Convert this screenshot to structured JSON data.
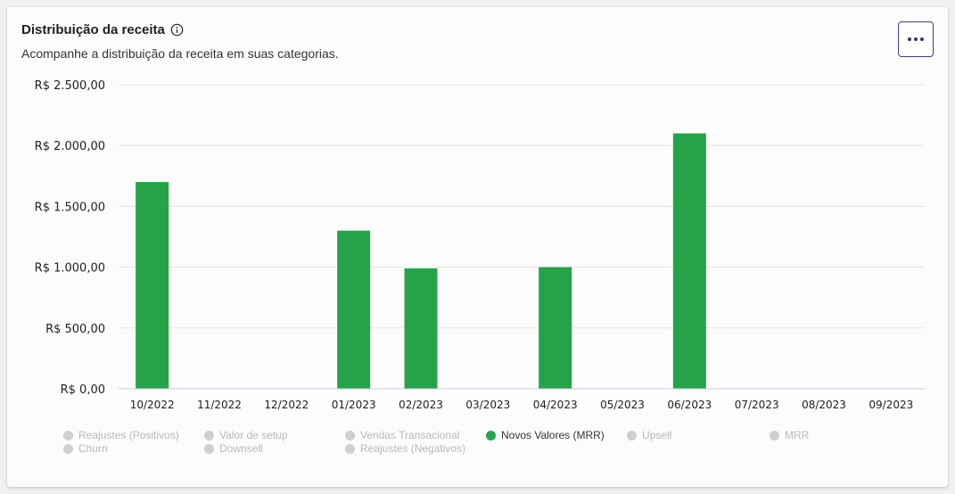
{
  "header": {
    "title": "Distribuição da receita",
    "subtitle": "Acompanhe a distribuição da receita em suas categorias."
  },
  "icons": {
    "info": "info-icon",
    "more": "more-horizontal-icon"
  },
  "colors": {
    "bar": "#26a349",
    "inactive_legend": "#cfcfcf",
    "button_border": "#4a3b8f"
  },
  "chart_data": {
    "type": "bar",
    "title": "Distribuição da receita",
    "categories": [
      "10/2022",
      "11/2022",
      "12/2022",
      "01/2023",
      "02/2023",
      "03/2023",
      "04/2023",
      "05/2023",
      "06/2023",
      "07/2023",
      "08/2023",
      "09/2023"
    ],
    "series": [
      {
        "name": "Novos Valores (MRR)",
        "color": "#26a349",
        "values": [
          1700,
          0,
          0,
          1300,
          990,
          0,
          1000,
          0,
          2100,
          0,
          0,
          0
        ]
      }
    ],
    "ylim": [
      0,
      2500
    ],
    "y_ticks": [
      {
        "value": 0,
        "label": "R$ 0,00"
      },
      {
        "value": 500,
        "label": "R$ 500,00"
      },
      {
        "value": 1000,
        "label": "R$ 1.000,00"
      },
      {
        "value": 1500,
        "label": "R$ 1.500,00"
      },
      {
        "value": 2000,
        "label": "R$ 2.000,00"
      },
      {
        "value": 2500,
        "label": "R$ 2.500,00"
      }
    ],
    "grid": true,
    "legend_position": "bottom"
  },
  "legend": [
    {
      "label": "Reajustes (Positivos)",
      "active": false
    },
    {
      "label": "Valor de setup",
      "active": false
    },
    {
      "label": "Vendas Transacional",
      "active": false
    },
    {
      "label": "Novos Valores (MRR)",
      "active": true
    },
    {
      "label": "Upsell",
      "active": false
    },
    {
      "label": "MRR",
      "active": false
    },
    {
      "label": "Churn",
      "active": false
    },
    {
      "label": "Downsell",
      "active": false
    },
    {
      "label": "Reajustes (Negativos)",
      "active": false
    }
  ]
}
